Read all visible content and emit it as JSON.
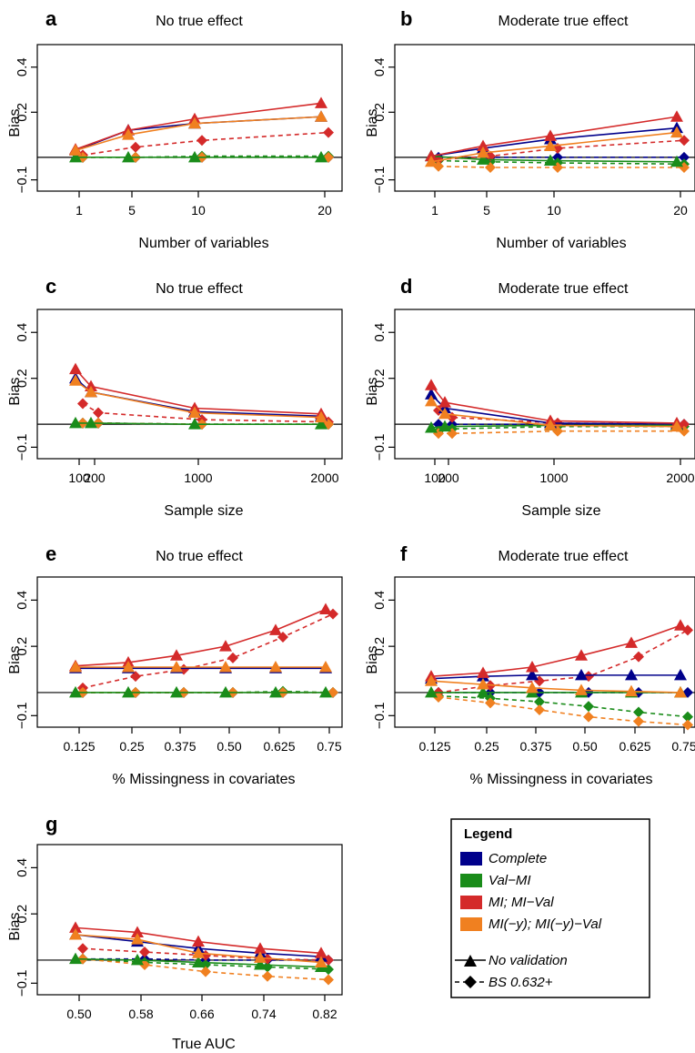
{
  "colors": {
    "complete": "#00008b",
    "valmi": "#1a8c1a",
    "mi": "#d42a2a",
    "mimy": "#f08020"
  },
  "chart_data": [
    {
      "type": "line",
      "panel_label": "a",
      "title": "No true effect",
      "xlabel": "Number of variables",
      "ylabel": "Bias",
      "x": [
        1,
        5,
        10,
        20
      ],
      "x_tick_labels": [
        "1",
        "5",
        "10",
        "20"
      ],
      "ylim": [
        -0.15,
        0.5
      ],
      "y_ticks": [
        "−0.1",
        "0.2",
        "0.4"
      ],
      "series": [
        {
          "name": "Complete",
          "style": "No validation",
          "values": [
            0.03,
            0.12,
            0.15,
            0.18
          ]
        },
        {
          "name": "Complete",
          "style": "BS 0.632+",
          "values": [
            0.0,
            0.0,
            0.0,
            0.0
          ]
        },
        {
          "name": "Val−MI",
          "style": "No validation",
          "values": [
            0.0,
            0.0,
            0.0,
            0.0
          ]
        },
        {
          "name": "Val−MI",
          "style": "BS 0.632+",
          "values": [
            0.0,
            0.0,
            0.005,
            0.005
          ]
        },
        {
          "name": "MI; MI−Val",
          "style": "No validation",
          "values": [
            0.035,
            0.12,
            0.17,
            0.24
          ]
        },
        {
          "name": "MI; MI−Val",
          "style": "BS 0.632+",
          "values": [
            0.01,
            0.045,
            0.075,
            0.11
          ]
        },
        {
          "name": "MI(−y); MI(−y)−Val",
          "style": "No validation",
          "values": [
            0.03,
            0.1,
            0.15,
            0.18
          ]
        },
        {
          "name": "MI(−y); MI(−y)−Val",
          "style": "BS 0.632+",
          "values": [
            0.0,
            0.0,
            0.0,
            0.0
          ]
        }
      ]
    },
    {
      "type": "line",
      "panel_label": "b",
      "title": "Moderate true effect",
      "xlabel": "Number of variables",
      "ylabel": "Bias",
      "x": [
        1,
        5,
        10,
        20
      ],
      "x_tick_labels": [
        "1",
        "5",
        "10",
        "20"
      ],
      "ylim": [
        -0.15,
        0.5
      ],
      "y_ticks": [
        "−0.1",
        "0.2",
        "0.4"
      ],
      "series": [
        {
          "name": "Complete",
          "style": "No validation",
          "values": [
            0.005,
            0.04,
            0.08,
            0.13
          ]
        },
        {
          "name": "Complete",
          "style": "BS 0.632+",
          "values": [
            0.0,
            0.0,
            0.0,
            0.0
          ]
        },
        {
          "name": "Val−MI",
          "style": "No validation",
          "values": [
            0.005,
            -0.01,
            -0.015,
            -0.02
          ]
        },
        {
          "name": "Val−MI",
          "style": "BS 0.632+",
          "values": [
            -0.015,
            -0.02,
            -0.025,
            -0.03
          ]
        },
        {
          "name": "MI; MI−Val",
          "style": "No validation",
          "values": [
            0.005,
            0.05,
            0.095,
            0.18
          ]
        },
        {
          "name": "MI; MI−Val",
          "style": "BS 0.632+",
          "values": [
            -0.01,
            0.005,
            0.04,
            0.075
          ]
        },
        {
          "name": "MI(−y); MI(−y)−Val",
          "style": "No validation",
          "values": [
            -0.02,
            0.02,
            0.05,
            0.11
          ]
        },
        {
          "name": "MI(−y); MI(−y)−Val",
          "style": "BS 0.632+",
          "values": [
            -0.04,
            -0.045,
            -0.045,
            -0.045
          ]
        }
      ]
    },
    {
      "type": "line",
      "panel_label": "c",
      "title": "No true effect",
      "xlabel": "Sample size",
      "ylabel": "Bias",
      "x": [
        100,
        200,
        1000,
        2000
      ],
      "x_tick_labels": [
        "100",
        "200",
        "1000",
        "2000"
      ],
      "ylim": [
        -0.15,
        0.5
      ],
      "y_ticks": [
        "−0.1",
        "0.2",
        "0.4"
      ],
      "series": [
        {
          "name": "Complete",
          "style": "No validation",
          "values": [
            0.2,
            0.14,
            0.055,
            0.035
          ]
        },
        {
          "name": "Complete",
          "style": "BS 0.632+",
          "values": [
            0.005,
            0.005,
            0.0,
            0.0
          ]
        },
        {
          "name": "Val−MI",
          "style": "No validation",
          "values": [
            0.005,
            0.005,
            0.0,
            0.0
          ]
        },
        {
          "name": "Val−MI",
          "style": "BS 0.632+",
          "values": [
            0.005,
            0.005,
            0.0,
            0.0
          ]
        },
        {
          "name": "MI; MI−Val",
          "style": "No validation",
          "values": [
            0.24,
            0.165,
            0.07,
            0.045
          ]
        },
        {
          "name": "MI; MI−Val",
          "style": "BS 0.632+",
          "values": [
            0.09,
            0.05,
            0.02,
            0.01
          ]
        },
        {
          "name": "MI(−y); MI(−y)−Val",
          "style": "No validation",
          "values": [
            0.19,
            0.14,
            0.05,
            0.03
          ]
        },
        {
          "name": "MI(−y); MI(−y)−Val",
          "style": "BS 0.632+",
          "values": [
            0.005,
            0.005,
            0.0,
            0.0
          ]
        }
      ]
    },
    {
      "type": "line",
      "panel_label": "d",
      "title": "Moderate true effect",
      "xlabel": "Sample size",
      "ylabel": "Bias",
      "x": [
        100,
        200,
        1000,
        2000
      ],
      "x_tick_labels": [
        "100",
        "200",
        "1000",
        "2000"
      ],
      "ylim": [
        -0.15,
        0.5
      ],
      "y_ticks": [
        "−0.1",
        "0.2",
        "0.4"
      ],
      "series": [
        {
          "name": "Complete",
          "style": "No validation",
          "values": [
            0.13,
            0.07,
            0.005,
            0.0
          ]
        },
        {
          "name": "Complete",
          "style": "BS 0.632+",
          "values": [
            0.0,
            0.0,
            0.0,
            0.0
          ]
        },
        {
          "name": "Val−MI",
          "style": "No validation",
          "values": [
            -0.015,
            -0.01,
            -0.005,
            -0.005
          ]
        },
        {
          "name": "Val−MI",
          "style": "BS 0.632+",
          "values": [
            -0.03,
            -0.02,
            -0.01,
            -0.01
          ]
        },
        {
          "name": "MI; MI−Val",
          "style": "No validation",
          "values": [
            0.17,
            0.095,
            0.015,
            0.005
          ]
        },
        {
          "name": "MI; MI−Val",
          "style": "BS 0.632+",
          "values": [
            0.06,
            0.03,
            0.005,
            0.0
          ]
        },
        {
          "name": "MI(−y); MI(−y)−Val",
          "style": "No validation",
          "values": [
            0.1,
            0.045,
            -0.005,
            -0.01
          ]
        },
        {
          "name": "MI(−y); MI(−y)−Val",
          "style": "BS 0.632+",
          "values": [
            -0.04,
            -0.04,
            -0.03,
            -0.03
          ]
        }
      ]
    },
    {
      "type": "line",
      "panel_label": "e",
      "title": "No true effect",
      "xlabel": "% Missingness in covariates",
      "ylabel": "Bias",
      "x": [
        0.125,
        0.25,
        0.375,
        0.5,
        0.625,
        0.75
      ],
      "x_tick_labels": [
        "0.125",
        "0.25",
        "0.375",
        "0.50",
        "0.625",
        "0.75"
      ],
      "ylim": [
        -0.15,
        0.5
      ],
      "y_ticks": [
        "−0.1",
        "0.2",
        "0.4"
      ],
      "series": [
        {
          "name": "Complete",
          "style": "No validation",
          "values": [
            0.105,
            0.105,
            0.105,
            0.105,
            0.105,
            0.105
          ]
        },
        {
          "name": "Complete",
          "style": "BS 0.632+",
          "values": [
            0.0,
            0.0,
            0.0,
            0.0,
            0.0,
            0.0
          ]
        },
        {
          "name": "Val−MI",
          "style": "No validation",
          "values": [
            0.0,
            0.0,
            0.0,
            0.0,
            0.0,
            0.0
          ]
        },
        {
          "name": "Val−MI",
          "style": "BS 0.632+",
          "values": [
            0.0,
            0.0,
            0.0,
            0.0,
            0.005,
            0.0
          ]
        },
        {
          "name": "MI; MI−Val",
          "style": "No validation",
          "values": [
            0.115,
            0.13,
            0.16,
            0.2,
            0.27,
            0.36
          ]
        },
        {
          "name": "MI; MI−Val",
          "style": "BS 0.632+",
          "values": [
            0.02,
            0.07,
            0.1,
            0.15,
            0.24,
            0.34
          ]
        },
        {
          "name": "MI(−y); MI(−y)−Val",
          "style": "No validation",
          "values": [
            0.11,
            0.11,
            0.11,
            0.11,
            0.11,
            0.11
          ]
        },
        {
          "name": "MI(−y); MI(−y)−Val",
          "style": "BS 0.632+",
          "values": [
            0.0,
            0.0,
            0.0,
            0.0,
            0.0,
            0.0
          ]
        }
      ]
    },
    {
      "type": "line",
      "panel_label": "f",
      "title": "Moderate true effect",
      "xlabel": "% Missingness in covariates",
      "ylabel": "Bias",
      "x": [
        0.125,
        0.25,
        0.375,
        0.5,
        0.625,
        0.75
      ],
      "x_tick_labels": [
        "0.125",
        "0.25",
        "0.375",
        "0.50",
        "0.625",
        "0.75"
      ],
      "ylim": [
        -0.15,
        0.5
      ],
      "y_ticks": [
        "−0.1",
        "0.2",
        "0.4"
      ],
      "series": [
        {
          "name": "Complete",
          "style": "No validation",
          "values": [
            0.06,
            0.07,
            0.075,
            0.075,
            0.075,
            0.075
          ]
        },
        {
          "name": "Complete",
          "style": "BS 0.632+",
          "values": [
            0.0,
            0.0,
            0.0,
            0.0,
            0.0,
            0.0
          ]
        },
        {
          "name": "Val−MI",
          "style": "No validation",
          "values": [
            0.0,
            0.0,
            0.0,
            0.0,
            0.0,
            0.0
          ]
        },
        {
          "name": "Val−MI",
          "style": "BS 0.632+",
          "values": [
            -0.015,
            -0.025,
            -0.04,
            -0.06,
            -0.085,
            -0.105
          ]
        },
        {
          "name": "MI; MI−Val",
          "style": "No validation",
          "values": [
            0.07,
            0.085,
            0.11,
            0.16,
            0.215,
            0.29
          ]
        },
        {
          "name": "MI; MI−Val",
          "style": "BS 0.632+",
          "values": [
            0.0,
            0.03,
            0.05,
            0.07,
            0.155,
            0.27
          ]
        },
        {
          "name": "MI(−y); MI(−y)−Val",
          "style": "No validation",
          "values": [
            0.05,
            0.035,
            0.02,
            0.01,
            0.005,
            0.0
          ]
        },
        {
          "name": "MI(−y); MI(−y)−Val",
          "style": "BS 0.632+",
          "values": [
            -0.02,
            -0.045,
            -0.075,
            -0.105,
            -0.125,
            -0.14
          ]
        }
      ]
    },
    {
      "type": "line",
      "panel_label": "g",
      "title": "",
      "xlabel": "True AUC",
      "ylabel": "Bias",
      "x": [
        0.5,
        0.58,
        0.66,
        0.74,
        0.82
      ],
      "x_tick_labels": [
        "0.50",
        "0.58",
        "0.66",
        "0.74",
        "0.82"
      ],
      "ylim": [
        -0.15,
        0.5
      ],
      "y_ticks": [
        "−0.1",
        "0.2",
        "0.4"
      ],
      "series": [
        {
          "name": "Complete",
          "style": "No validation",
          "values": [
            0.11,
            0.08,
            0.05,
            0.03,
            0.015
          ]
        },
        {
          "name": "Complete",
          "style": "BS 0.632+",
          "values": [
            0.005,
            0.005,
            0.0,
            0.0,
            0.0
          ]
        },
        {
          "name": "Val−MI",
          "style": "No validation",
          "values": [
            0.005,
            0.0,
            -0.01,
            -0.02,
            -0.03
          ]
        },
        {
          "name": "Val−MI",
          "style": "BS 0.632+",
          "values": [
            0.005,
            -0.01,
            -0.02,
            -0.03,
            -0.04
          ]
        },
        {
          "name": "MI; MI−Val",
          "style": "No validation",
          "values": [
            0.14,
            0.12,
            0.08,
            0.05,
            0.03
          ]
        },
        {
          "name": "MI; MI−Val",
          "style": "BS 0.632+",
          "values": [
            0.05,
            0.035,
            0.02,
            0.005,
            0.0
          ]
        },
        {
          "name": "MI(−y); MI(−y)−Val",
          "style": "No validation",
          "values": [
            0.11,
            0.09,
            0.03,
            0.01,
            -0.01
          ]
        },
        {
          "name": "MI(−y); MI(−y)−Val",
          "style": "BS 0.632+",
          "values": [
            0.005,
            -0.02,
            -0.05,
            -0.07,
            -0.085
          ]
        }
      ]
    }
  ],
  "legend": {
    "title": "Legend",
    "items": [
      {
        "label": "Complete",
        "color": "#00008b"
      },
      {
        "label": "Val−MI",
        "color": "#1a8c1a"
      },
      {
        "label": "MI; MI−Val",
        "color": "#d42a2a"
      },
      {
        "label": "MI(−y); MI(−y)−Val",
        "color": "#f08020"
      }
    ],
    "styles": [
      {
        "label": "No validation",
        "marker": "triangle",
        "line": "solid"
      },
      {
        "label": "BS 0.632+",
        "marker": "diamond",
        "line": "dashed"
      }
    ]
  }
}
